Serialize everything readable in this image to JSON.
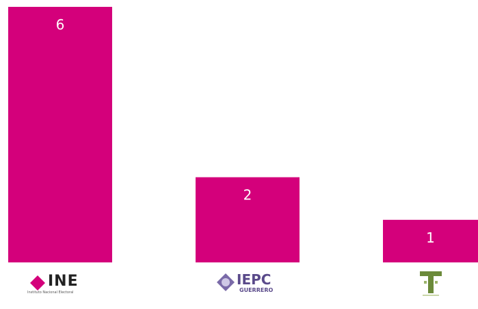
{
  "chart_data": {
    "type": "bar",
    "categories": [
      "INE",
      "IEPC",
      "T"
    ],
    "values": [
      6,
      2,
      1
    ],
    "data_labels": [
      "6",
      "2",
      "1"
    ],
    "ylim": [
      0,
      6
    ],
    "grid": false,
    "legend": "none"
  },
  "colors": {
    "bar": "#d4007b",
    "label": "#ffffff"
  },
  "logos": {
    "ine": {
      "text": "INE",
      "subtitle": "Instituto Nacional Electoral"
    },
    "iepc": {
      "text": "IEPC",
      "subtitle": "GUERRERO"
    },
    "tribunal": {
      "text": "T"
    }
  }
}
